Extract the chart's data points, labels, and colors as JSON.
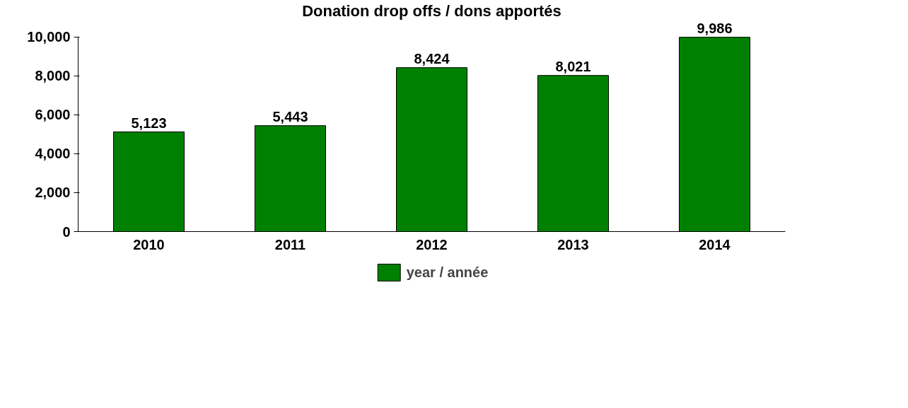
{
  "chart_data": {
    "type": "bar",
    "title": "Donation drop offs / dons apportés",
    "categories": [
      "2010",
      "2011",
      "2012",
      "2013",
      "2014"
    ],
    "series": [
      {
        "name": "year / année",
        "color": "#008000",
        "values": [
          5123,
          5443,
          8424,
          8021,
          9986
        ],
        "value_labels": [
          "5,123",
          "5,443",
          "8,424",
          "8,021",
          "9,986"
        ]
      }
    ],
    "ylim": [
      0,
      10000
    ],
    "yticks": [
      0,
      {
        "value": 2000,
        "label": "2,000"
      },
      {
        "value": 4000,
        "label": "4,000"
      },
      {
        "value": 6000,
        "label": "6,000"
      },
      {
        "value": 8000,
        "label": "8,000"
      },
      {
        "value": 10000,
        "label": "10,000"
      }
    ],
    "grid": false,
    "legend": "bottom"
  }
}
